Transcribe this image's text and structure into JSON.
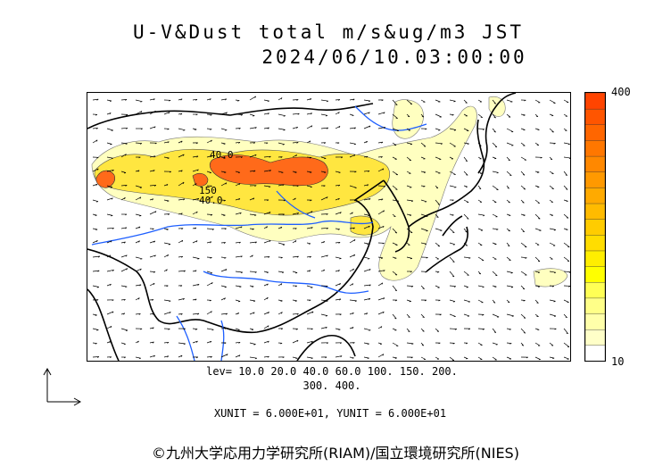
{
  "title": {
    "line1": "U-V&Dust total m/s&ug/m3 JST",
    "line2": "2024/06/10.03:00:00"
  },
  "colorbar": {
    "max_label": "400",
    "min_label": "10",
    "colors": [
      "#ffffff",
      "#ffffc8",
      "#ffffaa",
      "#ffff88",
      "#ffff55",
      "#ffff00",
      "#ffee00",
      "#ffdd00",
      "#ffcc00",
      "#ffbb00",
      "#ffaa00",
      "#ff9900",
      "#ff8800",
      "#ff7700",
      "#ff6600",
      "#ff5500",
      "#ff4400"
    ]
  },
  "contour_labels": [
    "40.0",
    "150",
    "40.0"
  ],
  "legend": {
    "levels_line1": "lev= 10.0 20.0 40.0 60.0 100. 150. 200.",
    "levels_line2": "300. 400."
  },
  "units": "XUNIT = 6.000E+01, YUNIT = 6.000E+01",
  "copyright": "©九州大学応用力学研究所(RIAM)/国立環境研究所(NIES)",
  "colors": {
    "coast": "#000000",
    "river": "#1e5fff",
    "dust_low": "#ffffc0",
    "dust_mid": "#ffe640",
    "dust_high": "#ff6a1a"
  }
}
